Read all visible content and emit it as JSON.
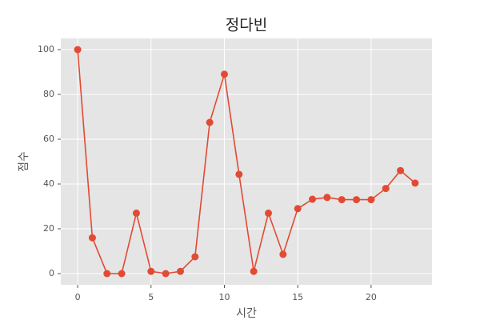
{
  "chart_data": {
    "type": "line",
    "title": "정다빈",
    "xlabel": "시간",
    "ylabel": "점수",
    "x": [
      0,
      1,
      2,
      3,
      4,
      5,
      6,
      7,
      8,
      9,
      10,
      11,
      12,
      13,
      14,
      15,
      16,
      17,
      18,
      19,
      20,
      21,
      22,
      23
    ],
    "series": [
      {
        "name": "정다빈",
        "color": "#E24A33",
        "values": [
          100,
          16,
          0,
          0,
          27,
          1,
          0,
          1,
          7.5,
          67.5,
          89,
          44.3,
          1,
          27,
          8.6,
          29,
          33.2,
          34,
          33,
          33,
          33,
          38,
          46,
          40.4
        ]
      }
    ],
    "xlim": [
      -1.15,
      24.15
    ],
    "xticks": [
      0,
      5,
      10,
      15,
      20
    ],
    "ylim": [
      -5,
      105
    ],
    "yticks": [
      0,
      20,
      40,
      60,
      80,
      100
    ],
    "grid": true
  }
}
